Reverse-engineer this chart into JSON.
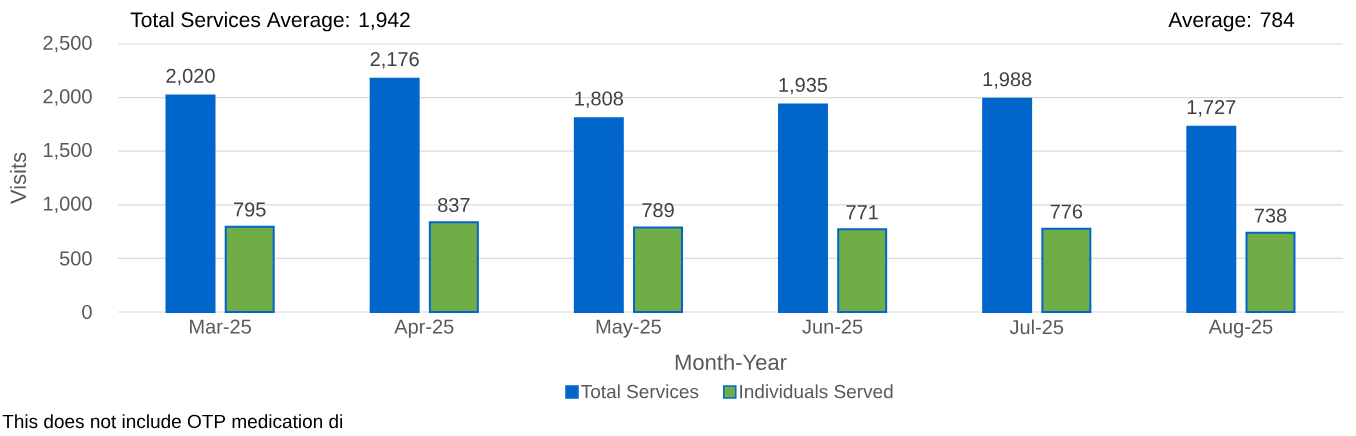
{
  "chart_data": {
    "type": "bar",
    "annotations": [
      "Total Services Average: 1,942",
      "Average: 784",
      "This does not include OTP medication di"
    ],
    "xlabel": "Month-Year",
    "ylabel": "Visits",
    "categories": [
      "Mar-25",
      "Apr-25",
      "May-25",
      "Jun-25",
      "Jul-25",
      "Aug-25"
    ],
    "series": [
      {
        "name": "Total Services",
        "color": "#0066cc",
        "values": [
          2020,
          2176,
          1808,
          1935,
          1988,
          1727
        ],
        "value_labels": [
          "2,020",
          "2,176",
          "1,808",
          "1,935",
          "1,988",
          "1,727"
        ]
      },
      {
        "name": "Individuals Served",
        "color": "#70ad47",
        "values": [
          795,
          837,
          789,
          771,
          776,
          738
        ],
        "value_labels": [
          "795",
          "837",
          "789",
          "771",
          "776",
          "738"
        ]
      }
    ],
    "ylim": [
      0,
      2500
    ],
    "yticks": [
      0,
      500,
      {
        "value": 1000,
        "label": "1,000"
      },
      {
        "value": 1500,
        "label": "1,500"
      },
      {
        "value": 2000,
        "label": "2,000"
      },
      {
        "value": 2500,
        "label": "2,500"
      }
    ],
    "grid": "y",
    "legend": "bottom"
  }
}
